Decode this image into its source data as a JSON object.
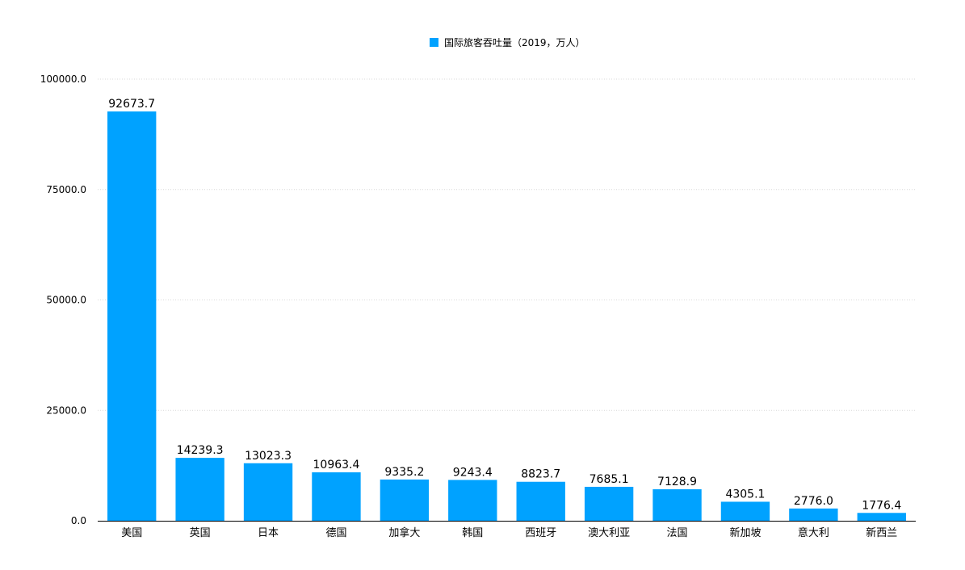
{
  "chart_data": {
    "type": "bar",
    "title": "",
    "xlabel": "",
    "ylabel": "",
    "categories": [
      "美国",
      "英国",
      "日本",
      "德国",
      "加拿大",
      "韩国",
      "西班牙",
      "澳大利亚",
      "法国",
      "新加坡",
      "意大利",
      "新西兰"
    ],
    "series": [
      {
        "name": "国际旅客吞吐量（2019，万人）",
        "color": "#00a2ff",
        "values": [
          92673.7,
          14239.3,
          13023.3,
          10963.4,
          9335.2,
          9243.4,
          8823.7,
          7685.1,
          7128.9,
          4305.1,
          2776.0,
          1776.4
        ],
        "labels": [
          "92673.7",
          "14239.3",
          "13023.3",
          "10963.4",
          "9335.2",
          "9243.4",
          "8823.7",
          "7685.1",
          "7128.9",
          "4305.1",
          "2776.0",
          "1776.4"
        ]
      }
    ],
    "ylim": [
      0,
      100000
    ],
    "yticks": [
      0,
      25000,
      50000,
      75000,
      100000
    ],
    "ytick_labels": [
      "0.0",
      "25000.0",
      "50000.0",
      "75000.0",
      "100000.0"
    ],
    "grid": true,
    "legend_position": "top-center"
  }
}
